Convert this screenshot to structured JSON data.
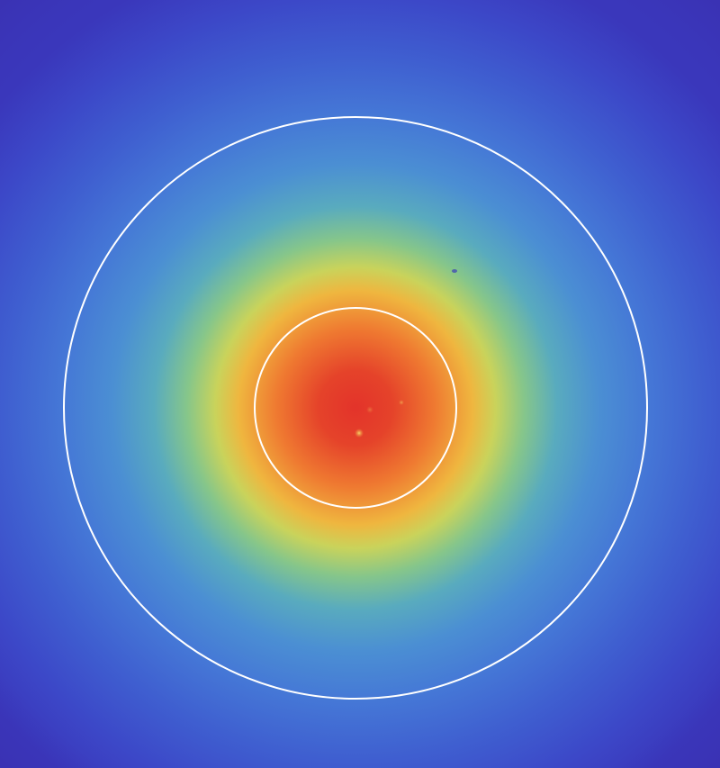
{
  "image": {
    "kind": "false-color intensity map (jet-like colormap)",
    "colormap": [
      "#3b2fb8",
      "#3d4ccf",
      "#3f74d8",
      "#4fa0c8",
      "#7fc58c",
      "#c8d65a",
      "#f3c13c",
      "#f07b2c",
      "#e03c25"
    ],
    "background_color": "#3d3fc6",
    "overlay_color": "#ffffff",
    "features": {
      "overlay_circles": 2,
      "bright_specks": 3
    }
  }
}
